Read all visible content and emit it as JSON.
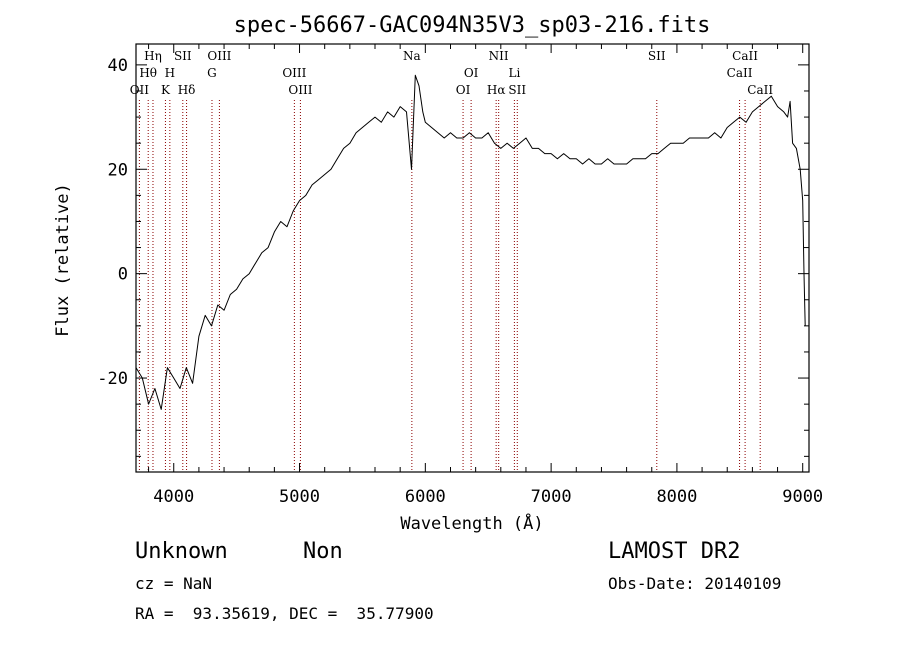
{
  "chart_data": {
    "type": "line",
    "title": "spec-56667-GAC094N35V3_sp03-216.fits",
    "xlabel": "Wavelength (Å)",
    "ylabel": "Flux (relative)",
    "xlim": [
      3700,
      9050
    ],
    "ylim": [
      -38,
      44
    ],
    "x_ticks": [
      4000,
      5000,
      6000,
      7000,
      8000,
      9000
    ],
    "y_ticks": [
      -20,
      0,
      20,
      40
    ],
    "grid": false,
    "line_color": "#000000",
    "marker_color": "#8b0000",
    "series": [
      {
        "x": [
          3700,
          3750,
          3800,
          3850,
          3900,
          3950,
          4000,
          4050,
          4100,
          4150,
          4200,
          4250,
          4300,
          4350,
          4400,
          4450,
          4500,
          4550,
          4600,
          4650,
          4700,
          4750,
          4800,
          4850,
          4900,
          4950,
          5000,
          5050,
          5100,
          5150,
          5200,
          5250,
          5300,
          5350,
          5400,
          5450,
          5500,
          5550,
          5600,
          5650,
          5700,
          5750,
          5800,
          5850,
          5890,
          5920,
          5950,
          5980,
          6000,
          6050,
          6100,
          6150,
          6200,
          6250,
          6300,
          6350,
          6400,
          6450,
          6500,
          6550,
          6600,
          6650,
          6700,
          6750,
          6800,
          6850,
          6900,
          6950,
          7000,
          7050,
          7100,
          7150,
          7200,
          7250,
          7300,
          7350,
          7400,
          7450,
          7500,
          7550,
          7600,
          7650,
          7700,
          7750,
          7800,
          7850,
          7900,
          7950,
          8000,
          8050,
          8100,
          8150,
          8200,
          8250,
          8300,
          8350,
          8400,
          8450,
          8500,
          8550,
          8600,
          8650,
          8700,
          8750,
          8800,
          8850,
          8880,
          8900,
          8920,
          8950,
          8980,
          9000,
          9010,
          9020
        ],
        "y": [
          -18,
          -20,
          -25,
          -22,
          -26,
          -18,
          -20,
          -22,
          -18,
          -21,
          -12,
          -8,
          -10,
          -6,
          -7,
          -4,
          -3,
          -1,
          0,
          2,
          4,
          5,
          8,
          10,
          9,
          12,
          14,
          15,
          17,
          18,
          19,
          20,
          22,
          24,
          25,
          27,
          28,
          29,
          30,
          29,
          31,
          30,
          32,
          31,
          20,
          38,
          36,
          31,
          29,
          28,
          27,
          26,
          27,
          26,
          26,
          27,
          26,
          26,
          27,
          25,
          24,
          25,
          24,
          25,
          26,
          24,
          24,
          23,
          23,
          22,
          23,
          22,
          22,
          21,
          22,
          21,
          21,
          22,
          21,
          21,
          21,
          22,
          22,
          22,
          23,
          23,
          24,
          25,
          25,
          25,
          26,
          26,
          26,
          26,
          27,
          26,
          28,
          29,
          30,
          29,
          31,
          32,
          33,
          34,
          32,
          31,
          30,
          33,
          25,
          24,
          20,
          14,
          0,
          -10
        ]
      }
    ],
    "spectral_lines": [
      {
        "label": "Hη",
        "row": 0,
        "x": 3835
      },
      {
        "label": "Hθ",
        "row": 1,
        "x": 3797
      },
      {
        "label": "OII",
        "row": 2,
        "x": 3727
      },
      {
        "label": "K",
        "row": 2,
        "x": 3934
      },
      {
        "label": "H",
        "row": 1,
        "x": 3969
      },
      {
        "label": "SII",
        "row": 0,
        "x": 4072
      },
      {
        "label": "Hδ",
        "row": 2,
        "x": 4102
      },
      {
        "label": "OIII",
        "row": 0,
        "x": 4363
      },
      {
        "label": "G",
        "row": 1,
        "x": 4304
      },
      {
        "label": "OIII",
        "row": 1,
        "x": 4959
      },
      {
        "label": "OIII",
        "row": 2,
        "x": 5007
      },
      {
        "label": "Na",
        "row": 0,
        "x": 5893
      },
      {
        "label": "OI",
        "row": 1,
        "x": 6364
      },
      {
        "label": "OI",
        "row": 2,
        "x": 6300
      },
      {
        "label": "NII",
        "row": 0,
        "x": 6583
      },
      {
        "label": "Hα",
        "row": 2,
        "x": 6563
      },
      {
        "label": "Li",
        "row": 1,
        "x": 6708
      },
      {
        "label": "SII",
        "row": 2,
        "x": 6731
      },
      {
        "label": "SII",
        "row": 0,
        "x": 7840
      },
      {
        "label": "CaII",
        "row": 0,
        "x": 8542
      },
      {
        "label": "CaII",
        "row": 1,
        "x": 8498
      },
      {
        "label": "CaII",
        "row": 2,
        "x": 8662
      }
    ]
  },
  "info": {
    "class": "Unknown",
    "subclass": "Non",
    "survey": "LAMOST DR2",
    "cz": "cz = NaN",
    "obs_date": "Obs-Date: 20140109",
    "coords": "RA =  93.35619, DEC =  35.77900"
  }
}
